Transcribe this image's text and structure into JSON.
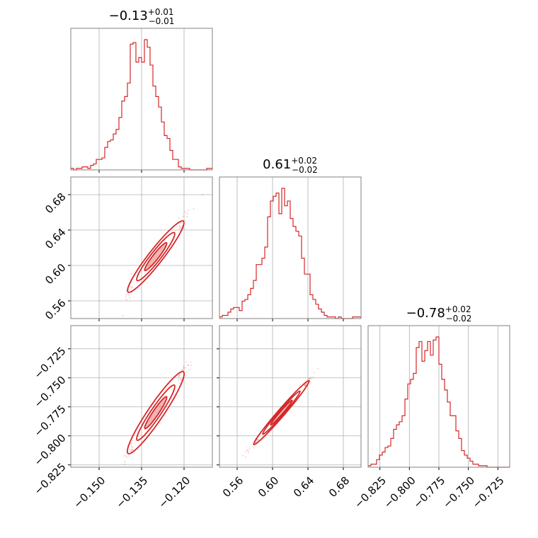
{
  "colors": {
    "accent": "#d62728",
    "grid": "#b0b0b0",
    "frame": "#808080"
  },
  "chart_data": [
    {
      "type": "histogram",
      "panel": "param0-marginal",
      "title": {
        "median": "−0.13",
        "upper": "+0.01",
        "lower": "−0.01"
      },
      "xlim": [
        -0.16,
        -0.11
      ],
      "xticks": [
        -0.15,
        -0.135,
        -0.12
      ],
      "bins_start": -0.16,
      "bin_width": 0.001,
      "counts": [
        1,
        0,
        1,
        1,
        2,
        2,
        1,
        3,
        4,
        7,
        7,
        8,
        15,
        19,
        20,
        24,
        27,
        35,
        46,
        49,
        58,
        84,
        85,
        72,
        75,
        72,
        87,
        82,
        70,
        56,
        49,
        42,
        32,
        23,
        21,
        13,
        7,
        7,
        2,
        1,
        1,
        1,
        0,
        0,
        0,
        0,
        0,
        0,
        1,
        1
      ]
    },
    {
      "type": "histogram",
      "panel": "param1-marginal",
      "title": {
        "median": "0.61",
        "upper": "+0.02",
        "lower": "−0.02"
      },
      "xlim": [
        0.54,
        0.7
      ],
      "xticks": [
        0.56,
        0.6,
        0.64,
        0.68
      ],
      "bins_start": 0.54,
      "bin_width": 0.0032,
      "counts": [
        1,
        2,
        2,
        4,
        6,
        7,
        7,
        5,
        11,
        12,
        15,
        19,
        24,
        34,
        34,
        38,
        45,
        64,
        74,
        77,
        79,
        66,
        82,
        71,
        74,
        63,
        58,
        55,
        52,
        38,
        28,
        28,
        15,
        12,
        9,
        6,
        4,
        2,
        1,
        1,
        1,
        0,
        1,
        0,
        0,
        0,
        0,
        1,
        1,
        1
      ]
    },
    {
      "type": "histogram",
      "panel": "param2-marginal",
      "title": {
        "median": "−0.78",
        "upper": "+0.02",
        "lower": "−0.02"
      },
      "xlim": [
        -0.835,
        -0.715
      ],
      "xticks": [
        -0.825,
        -0.8,
        -0.775,
        -0.75,
        -0.725
      ],
      "xtick_labels": [
        "−0.825",
        "−0.800",
        "−0.775",
        "−0.750",
        "−0.725"
      ],
      "bins_start": -0.835,
      "bin_width": 0.0024,
      "counts": [
        1,
        2,
        2,
        5,
        8,
        10,
        13,
        14,
        19,
        25,
        28,
        30,
        34,
        45,
        55,
        58,
        62,
        79,
        83,
        70,
        77,
        83,
        74,
        84,
        86,
        68,
        58,
        51,
        43,
        34,
        34,
        24,
        19,
        11,
        8,
        6,
        4,
        2,
        2,
        1,
        1,
        1,
        0,
        0,
        0,
        0,
        0,
        0,
        0,
        0
      ]
    },
    {
      "type": "scatter",
      "panel": "param0-vs-param1",
      "xlim": [
        -0.16,
        -0.11
      ],
      "ylim": [
        0.54,
        0.7
      ],
      "yticks": [
        0.56,
        0.6,
        0.64,
        0.68
      ],
      "slope": 4.1,
      "x_mean": -0.13,
      "y_mean": 0.61,
      "contour_levels": 3
    },
    {
      "type": "scatter",
      "panel": "param0-vs-param2",
      "xlim": [
        -0.16,
        -0.11
      ],
      "ylim": [
        -0.827,
        -0.705
      ],
      "yticks": [
        -0.825,
        -0.8,
        -0.775,
        -0.75,
        -0.725
      ],
      "ytick_labels": [
        "−0.825",
        "−0.800",
        "−0.775",
        "−0.750",
        "−0.725"
      ],
      "xtick_labels": [
        "−0.150",
        "−0.135",
        "−0.120"
      ],
      "slope": 3.6,
      "x_mean": -0.13,
      "y_mean": -0.78,
      "contour_levels": 3
    },
    {
      "type": "scatter",
      "panel": "param1-vs-param2",
      "xlim": [
        0.54,
        0.7
      ],
      "ylim": [
        -0.827,
        -0.705
      ],
      "xtick_labels": [
        "0.56",
        "0.60",
        "0.64",
        "0.68"
      ],
      "slope": 0.88,
      "x_mean": 0.61,
      "y_mean": -0.78,
      "contour_levels": 3
    }
  ]
}
